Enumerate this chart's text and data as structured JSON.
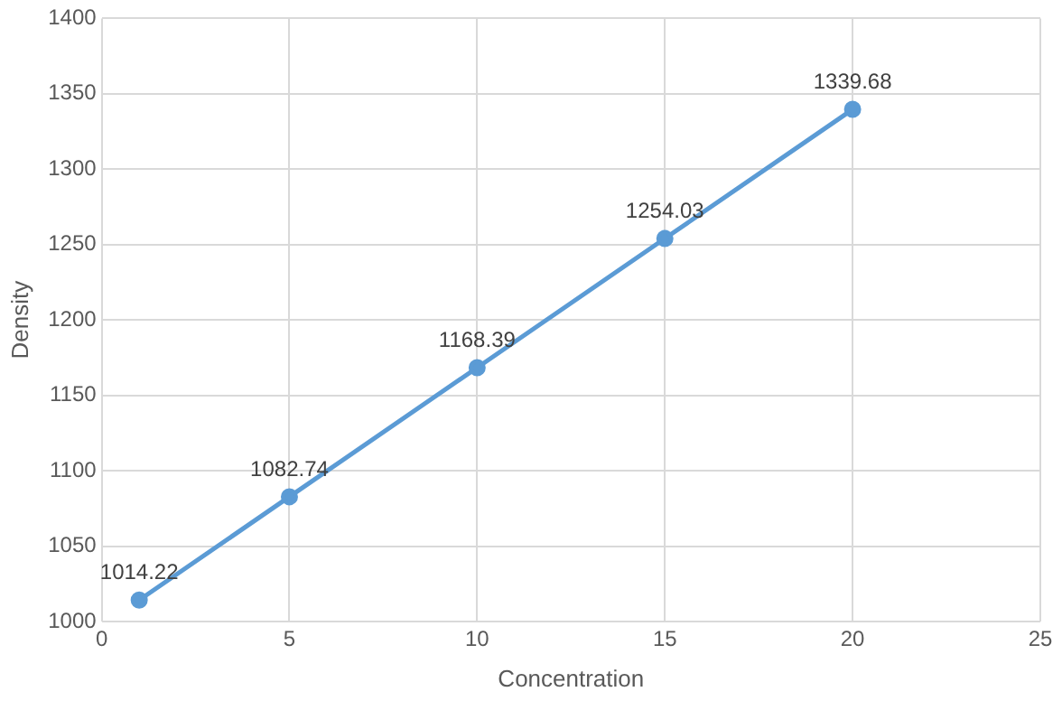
{
  "chart_data": {
    "type": "line",
    "xlabel": "Concentration",
    "ylabel": "Density",
    "x": [
      1,
      5,
      10,
      15,
      20
    ],
    "series": [
      {
        "color": "#5b9bd5",
        "values": [
          1014.22,
          1082.74,
          1168.39,
          1254.03,
          1339.68
        ]
      }
    ],
    "xlim": [
      0,
      25
    ],
    "xticks": [
      0,
      5,
      10,
      15,
      20,
      25
    ],
    "ylim": [
      1000,
      1400
    ],
    "yticks": [
      1000,
      1050,
      1100,
      1150,
      1200,
      1250,
      1300,
      1350,
      1400
    ],
    "grid": true,
    "legend": false,
    "marker": "circle",
    "line_style": "solid",
    "data_labels": true
  }
}
